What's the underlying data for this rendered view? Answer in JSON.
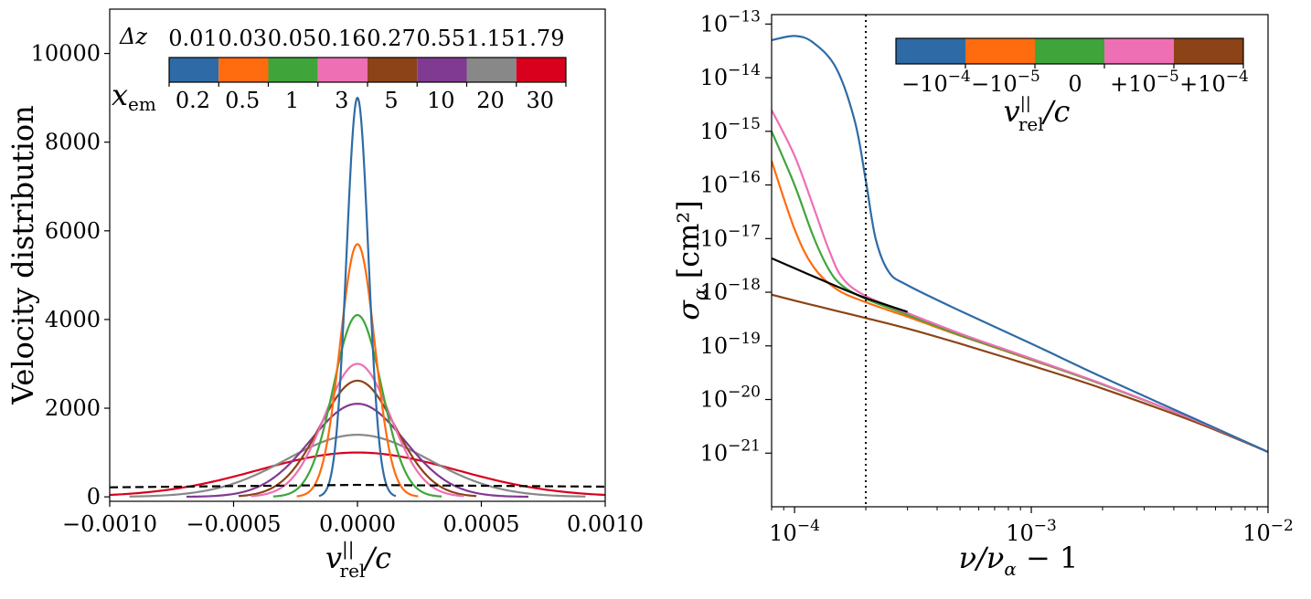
{
  "chart_data": [
    {
      "type": "line",
      "panel": "left",
      "xlabel": "v_rel^||/c",
      "xlabel_main": "v",
      "xlabel_sup": "||",
      "xlabel_sub": "rel",
      "xlabel_tail": "/c",
      "ylabel": "Velocity distribution",
      "xlim": [
        -0.001,
        0.001
      ],
      "ylim": [
        -100,
        11000
      ],
      "xticks": [
        -0.001,
        -0.0005,
        0.0,
        0.0005,
        0.001
      ],
      "xtick_labels": [
        "−0.0010",
        "−0.0005",
        "0.0000",
        "0.0005",
        "0.0010"
      ],
      "yticks": [
        0,
        2000,
        4000,
        6000,
        8000,
        10000
      ],
      "ytick_labels": [
        "0",
        "2000",
        "4000",
        "6000",
        "8000",
        "10000"
      ],
      "series": [
        {
          "name": "x_em = 0.2, Δz = 0.01",
          "color": "#2e6ba6",
          "peak": 9000,
          "sigma": 4.42e-05,
          "half_width": 0.000155
        },
        {
          "name": "x_em = 0.5, Δz = 0.03",
          "color": "#ff6b0f",
          "peak": 5700,
          "sigma": 6.99e-05,
          "half_width": 0.000245
        },
        {
          "name": "x_em = 1, Δz = 0.05",
          "color": "#3fa53a",
          "peak": 4100,
          "sigma": 9.71e-05,
          "half_width": 0.00034
        },
        {
          "name": "x_em = 3, Δz = 0.16",
          "color": "#ee6fb4",
          "peak": 3000,
          "sigma": 0.000133,
          "half_width": 0.00043
        },
        {
          "name": "x_em = 5, Δz = 0.27",
          "color": "#8c4317",
          "peak": 2620,
          "sigma": 0.000152,
          "half_width": 0.00048
        },
        {
          "name": "x_em = 10, Δz = 0.55",
          "color": "#813a92",
          "peak": 2100,
          "sigma": 0.00019,
          "half_width": 0.00069
        },
        {
          "name": "x_em = 20, Δz = 1.15",
          "color": "#888888",
          "peak": 1400,
          "sigma": 0.000285,
          "half_width": 0.00092
        },
        {
          "name": "x_em = 30, Δz = 1.79",
          "color": "#d8001d",
          "peak": 1000,
          "sigma": 0.000399,
          "half_width": 0.0012
        }
      ],
      "reference_line": {
        "style": "dashed",
        "color": "#000000",
        "points": [
          [
            -0.001,
            215
          ],
          [
            0.0,
            270
          ],
          [
            0.001,
            230
          ]
        ]
      },
      "colorbar": {
        "top_label": "Δz",
        "bottom_label": "x_em",
        "bottom_label_main": "x",
        "bottom_label_sub": "em",
        "top_ticks": [
          "0.01",
          "0.03",
          "0.05",
          "0.16",
          "0.27",
          "0.55",
          "1.15",
          "1.79"
        ],
        "bottom_ticks": [
          "0.2",
          "0.5",
          "1",
          "3",
          "5",
          "10",
          "20",
          "30"
        ],
        "colors": [
          "#2e6ba6",
          "#ff6b0f",
          "#3fa53a",
          "#ee6fb4",
          "#8c4317",
          "#813a92",
          "#888888",
          "#d8001d"
        ]
      }
    },
    {
      "type": "line",
      "panel": "right",
      "scale": "log-log",
      "xlabel": "ν/ν_α − 1",
      "xlabel_main": "ν/ν",
      "xlabel_sub": "α",
      "xlabel_tail": " − 1",
      "ylabel": "σ_α [cm²]",
      "ylabel_main": "σ",
      "ylabel_sub": "α",
      "ylabel_tail": " [cm²]",
      "xlim": [
        8e-05,
        0.01
      ],
      "ylim": [
        1e-22,
        1.5e-13
      ],
      "xticks": [
        0.0001,
        0.001,
        0.01
      ],
      "xtick_labels": [
        "10⁻⁴",
        "10⁻³",
        "10⁻²"
      ],
      "xtick_base": "10",
      "xtick_exps": [
        "−4",
        "−3",
        "−2"
      ],
      "yticks": [
        1e-21,
        1e-20,
        1e-19,
        1e-18,
        1e-17,
        1e-16,
        1e-15,
        1e-14,
        1e-13
      ],
      "ytick_labels": [
        "10⁻²¹",
        "10⁻²⁰",
        "10⁻¹⁹",
        "10⁻¹⁸",
        "10⁻¹⁷",
        "10⁻¹⁶",
        "10⁻¹⁵",
        "10⁻¹⁴",
        "10⁻¹³"
      ],
      "ytick_base": "10",
      "ytick_exps": [
        "−21",
        "−20",
        "−19",
        "−18",
        "−17",
        "−16",
        "−15",
        "−14",
        "−13"
      ],
      "vertical_line": {
        "x": 0.0002,
        "style": "dotted",
        "color": "#000000"
      },
      "series": [
        {
          "name": "v_rel/c = −10⁻⁴",
          "color": "#2e6ba6",
          "points": [
            [
              8e-05,
              5e-14
            ],
            [
              0.0001,
              6e-14
            ],
            [
              0.00012,
              4.5e-14
            ],
            [
              0.00015,
              1.5e-14
            ],
            [
              0.00018,
              1.5e-15
            ],
            [
              0.0002,
              1.2e-16
            ],
            [
              0.00022,
              1e-17
            ],
            [
              0.00025,
              2.4e-18
            ],
            [
              0.0003,
              1.35e-18
            ],
            [
              0.0005,
              4.5e-19
            ],
            [
              0.001,
              1.1e-19
            ],
            [
              0.002,
              2.6e-20
            ],
            [
              0.005,
              4.2e-21
            ],
            [
              0.01,
              1.05e-21
            ]
          ]
        },
        {
          "name": "v_rel/c = −10⁻⁵",
          "color": "#ff6b0f",
          "points": [
            [
              8e-05,
              2.8e-16
            ],
            [
              0.0001,
              1.5e-17
            ],
            [
              0.00012,
              3e-18
            ],
            [
              0.00015,
              1.15e-18
            ],
            [
              0.0002,
              6.5e-19
            ],
            [
              0.0003,
              3.5e-19
            ],
            [
              0.0005,
              1.55e-19
            ],
            [
              0.001,
              5.5e-20
            ],
            [
              0.002,
              1.9e-20
            ],
            [
              0.005,
              4e-21
            ],
            [
              0.01,
              1.05e-21
            ]
          ]
        },
        {
          "name": "v_rel/c = 0",
          "color": "#3fa53a",
          "points": [
            [
              8e-05,
              1e-15
            ],
            [
              0.0001,
              1e-16
            ],
            [
              0.00012,
              1.1e-17
            ],
            [
              0.00014,
              2.6e-18
            ],
            [
              0.00016,
              1.3e-18
            ],
            [
              0.0002,
              7.5e-19
            ],
            [
              0.0003,
              3.8e-19
            ],
            [
              0.0005,
              1.6e-19
            ],
            [
              0.001,
              5.6e-20
            ],
            [
              0.002,
              1.9e-20
            ],
            [
              0.005,
              4e-21
            ],
            [
              0.01,
              1.05e-21
            ]
          ]
        },
        {
          "name": "v_rel/c = +10⁻⁵",
          "color": "#ee6fb4",
          "points": [
            [
              8e-05,
              2.5e-15
            ],
            [
              0.0001,
              3.5e-16
            ],
            [
              0.00012,
              4e-17
            ],
            [
              0.00014,
              6e-18
            ],
            [
              0.00016,
              1.8e-18
            ],
            [
              0.0002,
              8.5e-19
            ],
            [
              0.0003,
              4.1e-19
            ],
            [
              0.0005,
              1.7e-19
            ],
            [
              0.001,
              5.8e-20
            ],
            [
              0.002,
              1.95e-20
            ],
            [
              0.005,
              4e-21
            ],
            [
              0.01,
              1.05e-21
            ]
          ]
        },
        {
          "name": "v_rel/c = +10⁻⁴",
          "color": "#8c4317",
          "points": [
            [
              8e-05,
              9e-19
            ],
            [
              0.0001,
              7e-19
            ],
            [
              0.00015,
              4.5e-19
            ],
            [
              0.0002,
              3.3e-19
            ],
            [
              0.0003,
              2.1e-19
            ],
            [
              0.0005,
              1.1e-19
            ],
            [
              0.001,
              4.3e-20
            ],
            [
              0.002,
              1.6e-20
            ],
            [
              0.005,
              3.7e-21
            ],
            [
              0.01,
              1.05e-21
            ]
          ]
        }
      ],
      "reference_line": {
        "color": "#000000",
        "points": [
          [
            8e-05,
            4.3e-18
          ],
          [
            0.0001,
            2.8e-18
          ],
          [
            0.00013,
            1.7e-18
          ],
          [
            0.00016,
            1.15e-18
          ],
          [
            0.0002,
            7.8e-19
          ],
          [
            0.00025,
            5.6e-19
          ],
          [
            0.0003,
            4.3e-19
          ]
        ]
      },
      "colorbar": {
        "label": "v_rel^||/c",
        "label_main": "v",
        "label_sup": "||",
        "label_sub": "rel",
        "label_tail": "/c",
        "ticks": [
          "−10⁻⁴",
          "−10⁻⁵",
          "0",
          "+10⁻⁵",
          "+10⁻⁴"
        ],
        "tick_base": [
          "−10",
          "−10",
          "0",
          "+10",
          "+10"
        ],
        "tick_exps": [
          "−4",
          "−5",
          "",
          "−5",
          "−4"
        ],
        "colors": [
          "#2e6ba6",
          "#ff6b0f",
          "#3fa53a",
          "#ee6fb4",
          "#8c4317"
        ]
      }
    }
  ]
}
